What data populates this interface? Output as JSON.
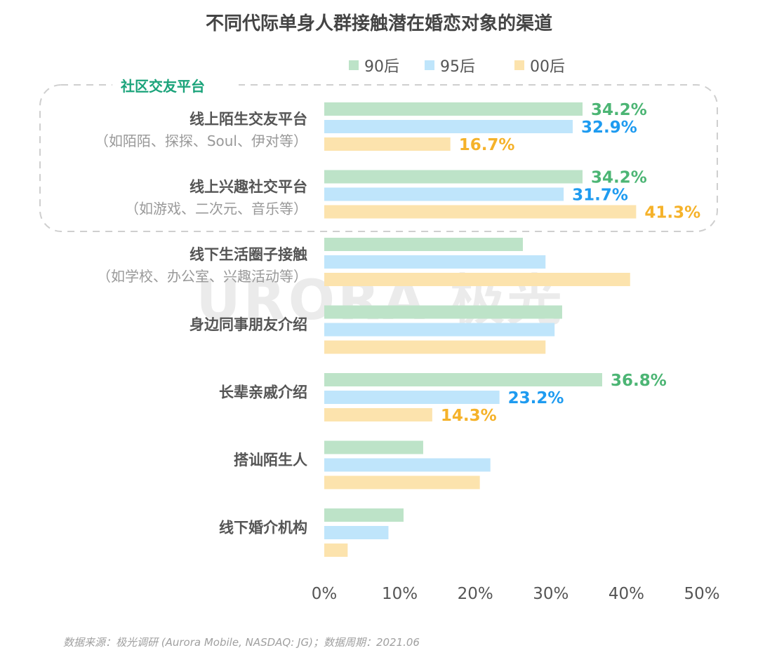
{
  "chart_data": {
    "type": "bar",
    "orientation": "horizontal",
    "title": "不同代际单身人群接触潜在婚恋对象的渠道",
    "categories": [
      {
        "label": "线上陌生交友平台",
        "sublabel": "（如陌陌、探探、Soul、伊对等）"
      },
      {
        "label": "线上兴趣社交平台",
        "sublabel": "（如游戏、二次元、音乐等）"
      },
      {
        "label": "线下生活圈子接触",
        "sublabel": "（如学校、办公室、兴趣活动等）"
      },
      {
        "label": "身边同事朋友介绍",
        "sublabel": ""
      },
      {
        "label": "长辈亲戚介绍",
        "sublabel": ""
      },
      {
        "label": "搭讪陌生人",
        "sublabel": ""
      },
      {
        "label": "线下婚介机构",
        "sublabel": ""
      }
    ],
    "series": [
      {
        "name": "90后",
        "color": "#bde3c8",
        "label_color": "#4cb574",
        "values": [
          34.2,
          34.2,
          26.3,
          31.5,
          36.8,
          13.1,
          10.5
        ]
      },
      {
        "name": "95后",
        "color": "#bfe5fb",
        "label_color": "#1e9bf0",
        "values": [
          32.9,
          31.7,
          29.3,
          30.5,
          23.2,
          22.0,
          8.5
        ]
      },
      {
        "name": "00后",
        "color": "#fce3ad",
        "label_color": "#f5b22a",
        "values": [
          16.7,
          41.3,
          40.5,
          29.3,
          14.3,
          20.6,
          3.1
        ]
      }
    ],
    "data_labels": [
      [
        "34.2%",
        "32.9%",
        "16.7%"
      ],
      [
        "34.2%",
        "31.7%",
        "41.3%"
      ],
      null,
      null,
      [
        "36.8%",
        "23.2%",
        "14.3%"
      ],
      null,
      null
    ],
    "xlim": [
      0,
      50
    ],
    "xticks": [
      "0%",
      "10%",
      "20%",
      "30%",
      "40%",
      "50%"
    ],
    "legend_position": "top",
    "grid": false,
    "annotation": {
      "group_label": "社区交友平台",
      "color": "#1aa37a"
    },
    "watermark": "URORA 极光",
    "source": "数据来源：极光调研 (Aurora Mobile, NASDAQ: JG)；数据周期：2021.06"
  }
}
